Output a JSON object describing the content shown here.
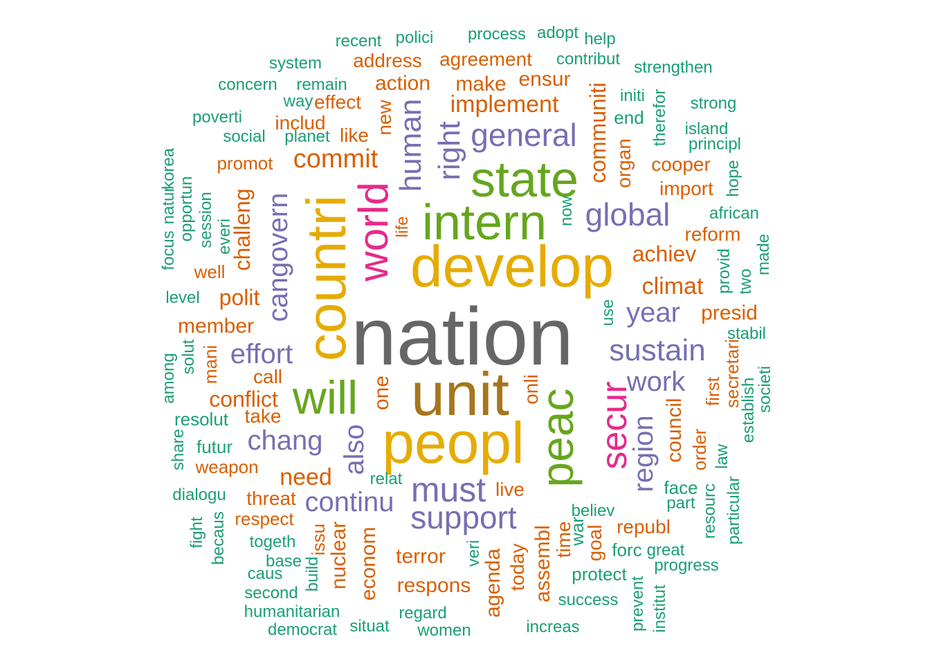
{
  "colors": {
    "gray": "#666666",
    "olive": "#A6761D",
    "gold": "#E6AB02",
    "green": "#66A61E",
    "magenta": "#E7298A",
    "purple": "#7570B3",
    "orange": "#D95F02",
    "teal": "#1B9E77"
  },
  "words": [
    "nation",
    "unit",
    "develop",
    "peopl",
    "countri",
    "intern",
    "state",
    "will",
    "peac",
    "world",
    "secur",
    "must",
    "support",
    "general",
    "global",
    "right",
    "human",
    "sustain",
    "chang",
    "continu",
    "also",
    "effort",
    "cangovern",
    "year",
    "work",
    "region",
    "commit",
    "implement",
    "climat",
    "need",
    "conflict",
    "achiev",
    "communiti",
    "polit",
    "challeng",
    "member",
    "presid",
    "council",
    "respons",
    "terror",
    "nuclear",
    "econom",
    "assembl",
    "agenda",
    "one",
    "new",
    "like",
    "onli",
    "live",
    "republ",
    "time",
    "today",
    "goal",
    "organ",
    "cooper",
    "import",
    "reform",
    "call",
    "take",
    "threat",
    "respect",
    "weapon",
    "well",
    "action",
    "make",
    "ensur",
    "address",
    "agreement",
    "effect",
    "includ",
    "promot",
    "mani",
    "face",
    "order",
    "first",
    "secretari",
    "protect",
    "forc",
    "issu",
    "war",
    "life",
    "futur",
    "resolut",
    "end",
    "process",
    "adopt",
    "help",
    "recent",
    "polici",
    "system",
    "contribut",
    "strengthen",
    "concern",
    "remain",
    "way",
    "initi",
    "therefor",
    "strong",
    "poverti",
    "social",
    "planet",
    "island",
    "principl",
    "hope",
    "korea",
    "natur",
    "focus",
    "opportun",
    "session",
    "everi",
    "level",
    "now",
    "african",
    "provid",
    "made",
    "two",
    "use",
    "stabil",
    "among",
    "solut",
    "establish",
    "societi",
    "share",
    "law",
    "dialogu",
    "part",
    "resourc",
    "particular",
    "relat",
    "believ",
    "fight",
    "becaus",
    "togeth",
    "base",
    "build",
    "caus",
    "veri",
    "great",
    "progress",
    "second",
    "humanitarian",
    "success",
    "prevent",
    "institut",
    "regard",
    "democrat",
    "situat",
    "women",
    "increas"
  ]
}
